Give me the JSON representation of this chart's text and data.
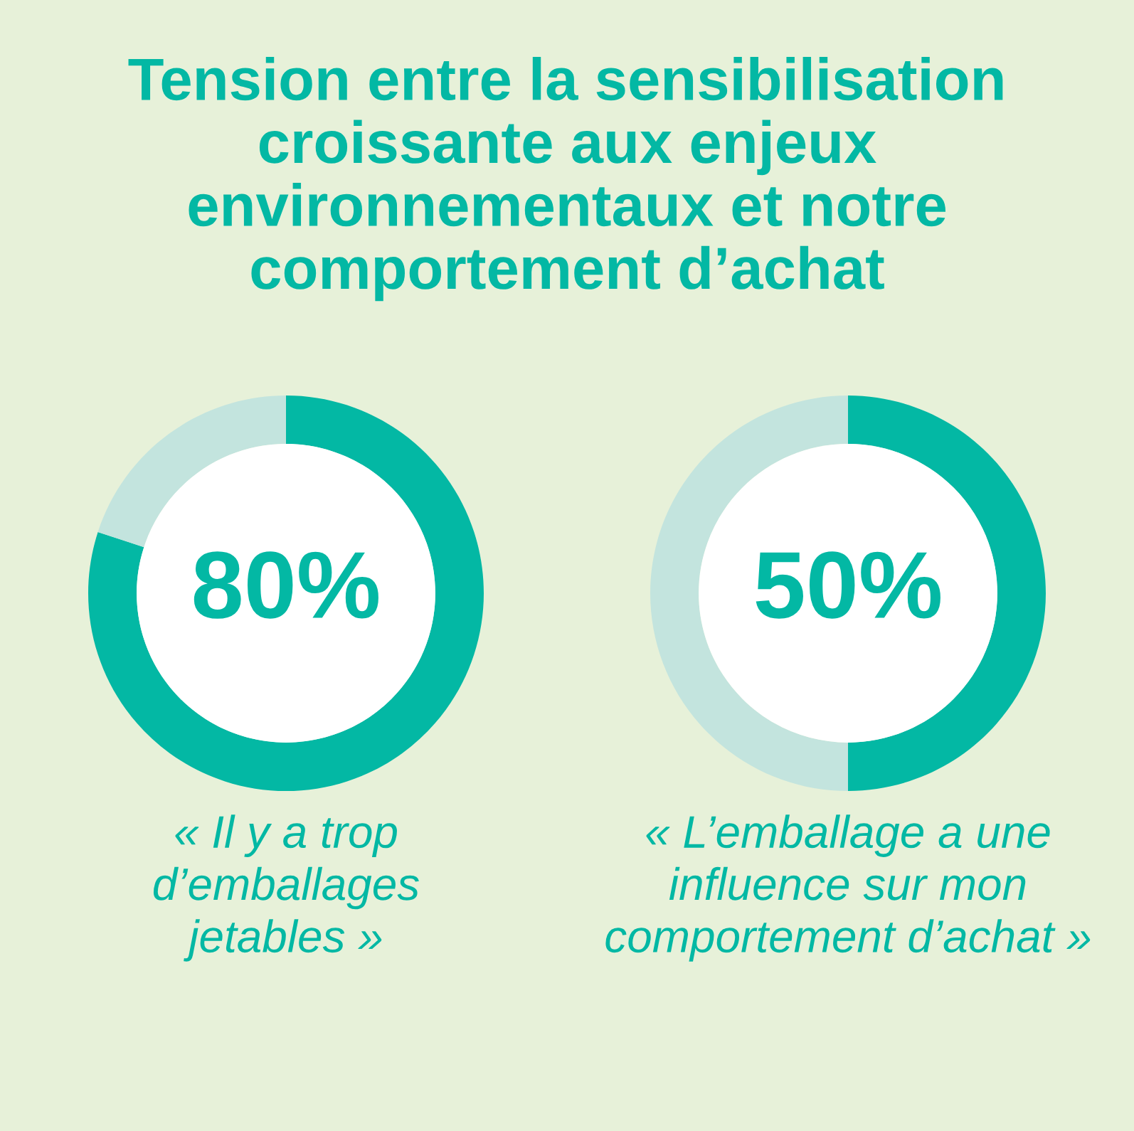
{
  "chart_data": [
    {
      "type": "donut",
      "title": "Tension entre la sensibilisation\ncroissante aux enjeux\nenvironnementaux et notre\ncomportement d’achat",
      "categories": [
        null,
        null
      ],
      "values": [
        80,
        20
      ],
      "colors": [
        "#03b8a4",
        "#c3e4de"
      ],
      "value_labels": [
        "80%",
        null
      ],
      "xlabel": "« Il y a trop\nd’emballages\njetables »"
    },
    {
      "type": "donut",
      "categories": [
        null,
        null
      ],
      "values": [
        50,
        50
      ],
      "colors": [
        "#03b8a4",
        "#c3e4de"
      ],
      "value_labels": [
        "50%",
        null
      ],
      "xlabel": "« L’emballage a une\ninfluence sur mon\ncomportement d’achat »"
    }
  ]
}
